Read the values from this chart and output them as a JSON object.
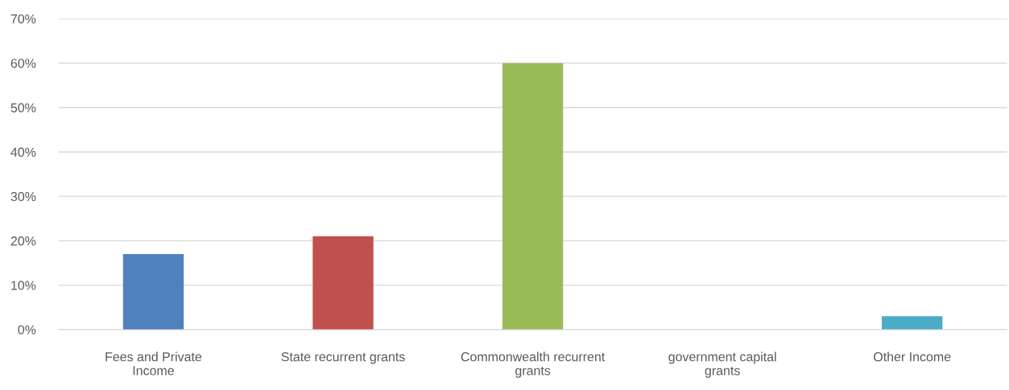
{
  "chart_data": {
    "type": "bar",
    "categories": [
      "Fees and Private Income",
      "State recurrent grants",
      "Commonwealth recurrent grants",
      "government capital grants",
      "Other Income"
    ],
    "values": [
      17,
      21,
      60,
      0,
      3
    ],
    "colors": [
      "#4f81bd",
      "#c0504d",
      "#9bbb59",
      "#8064a2",
      "#4bacc6"
    ],
    "ylim": [
      0,
      70
    ],
    "yticks": [
      {
        "value": 0,
        "label": "0%"
      },
      {
        "value": 10,
        "label": "10%"
      },
      {
        "value": 20,
        "label": "20%"
      },
      {
        "value": 30,
        "label": "30%"
      },
      {
        "value": 40,
        "label": "40%"
      },
      {
        "value": 50,
        "label": "50%"
      },
      {
        "value": 60,
        "label": "60%"
      },
      {
        "value": 70,
        "label": "70%"
      }
    ],
    "grid": "y"
  }
}
